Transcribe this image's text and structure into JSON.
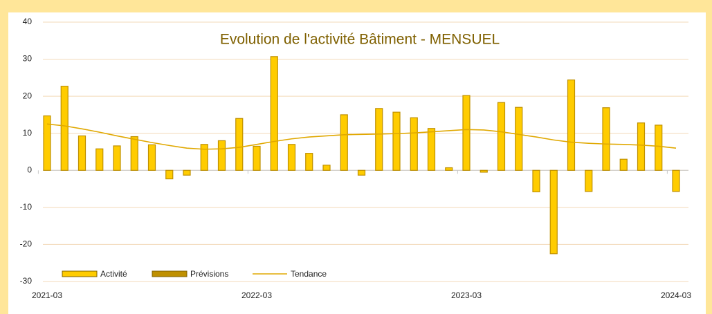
{
  "chart_data": {
    "type": "bar",
    "title": "Evolution de l'activité Bâtiment - MENSUEL",
    "categories": [
      "2021-03",
      null,
      null,
      null,
      null,
      null,
      null,
      null,
      null,
      null,
      null,
      null,
      "2022-03",
      null,
      null,
      null,
      null,
      null,
      null,
      null,
      null,
      null,
      null,
      null,
      "2023-03",
      null,
      null,
      null,
      null,
      null,
      null,
      null,
      null,
      null,
      null,
      null,
      "2024-03"
    ],
    "series": [
      {
        "name": "Activité",
        "color": "#ffcc00",
        "values": [
          14.7,
          22.7,
          9.3,
          5.8,
          6.6,
          9.1,
          6.9,
          -2.3,
          -1.3,
          7.0,
          8.0,
          14.0,
          6.5,
          30.7,
          7.0,
          4.6,
          1.4,
          15.0,
          -1.3,
          16.7,
          15.7,
          14.2,
          11.3,
          0.7,
          20.2,
          -0.5,
          18.3,
          17.0,
          -5.8,
          -22.5,
          24.4,
          -5.7,
          16.9,
          3.0,
          12.8,
          12.2,
          -5.7
        ]
      },
      {
        "name": "Prévisions",
        "color": "#bf9000",
        "values": [
          null,
          null,
          null,
          null,
          null,
          null,
          null,
          null,
          null,
          null,
          null,
          null,
          null,
          null,
          null,
          null,
          null,
          null,
          null,
          null,
          null,
          null,
          null,
          null,
          null,
          null,
          null,
          null,
          null,
          null,
          null,
          null,
          null,
          null,
          null,
          null,
          null
        ]
      },
      {
        "name": "Tendance",
        "type": "line",
        "color": "#e0a800",
        "values": [
          12.5,
          12.0,
          11.2,
          10.3,
          9.3,
          8.4,
          7.5,
          6.7,
          6.0,
          5.7,
          5.8,
          6.2,
          7.0,
          7.8,
          8.5,
          9.0,
          9.3,
          9.6,
          9.7,
          9.8,
          9.9,
          10.1,
          10.4,
          10.7,
          11.0,
          10.9,
          10.4,
          9.7,
          9.0,
          8.2,
          7.6,
          7.3,
          7.1,
          7.0,
          6.8,
          6.5,
          6.0
        ]
      }
    ],
    "ylim": [
      -30,
      40
    ],
    "yticks": [
      -30,
      -20,
      -10,
      0,
      10,
      20,
      30,
      40
    ],
    "grid": true,
    "legend": "bottom"
  }
}
